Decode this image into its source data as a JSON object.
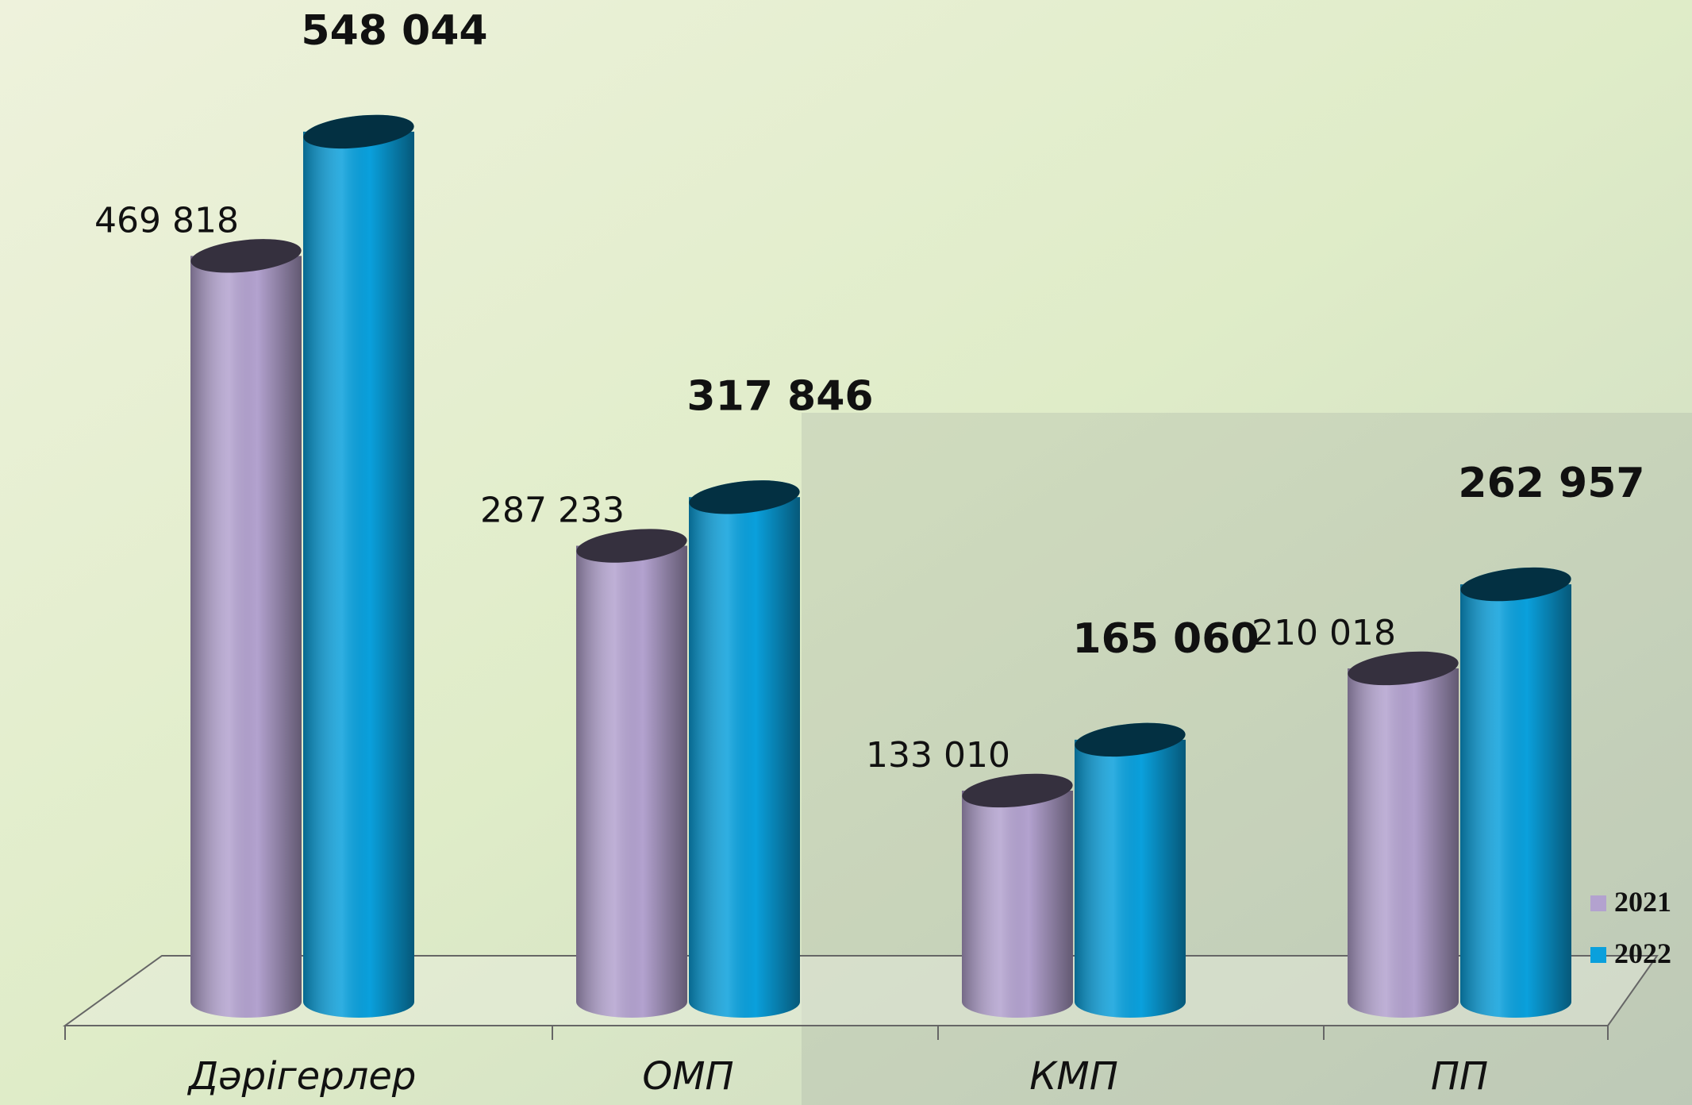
{
  "chart_data": {
    "type": "bar3d",
    "categories": [
      "Дәрігерлер",
      "ОМП",
      "КМП",
      "ПП"
    ],
    "series": [
      {
        "name": "2021",
        "color": "#b3a2cf",
        "values": [
          469818,
          287233,
          133010,
          210018
        ],
        "value_labels": [
          "469 818",
          "287 233",
          "133 010",
          "210 018"
        ]
      },
      {
        "name": "2022",
        "color": "#0aa0dc",
        "values": [
          548044,
          317846,
          165060,
          262957
        ],
        "value_labels": [
          "548 044",
          "317 846",
          "165 060",
          "262 957"
        ]
      }
    ]
  }
}
